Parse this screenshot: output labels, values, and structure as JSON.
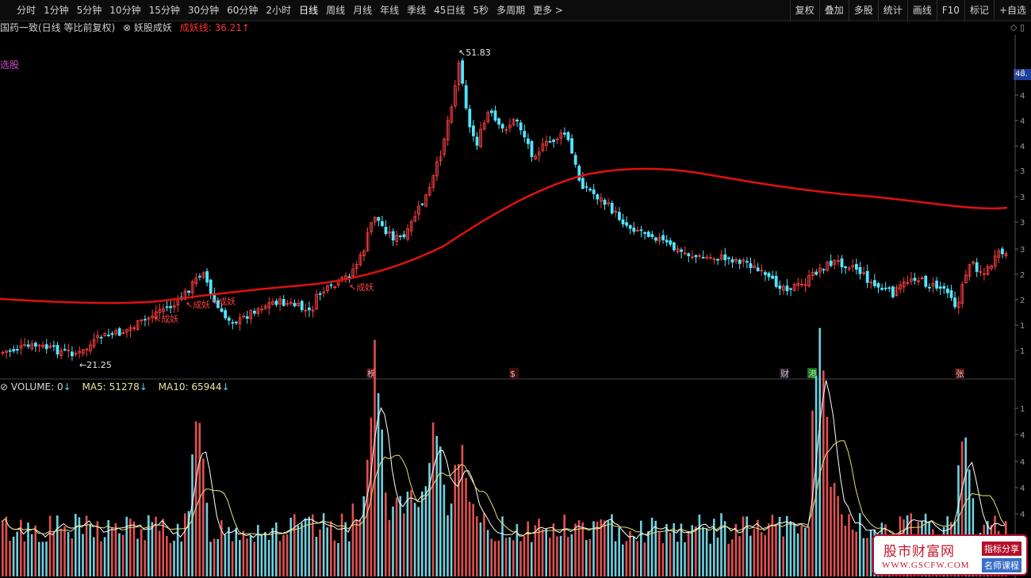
{
  "toolbar": {
    "periods": [
      "分时",
      "1分钟",
      "5分钟",
      "10分钟",
      "15分钟",
      "30分钟",
      "60分钟",
      "2小时",
      "日线",
      "周线",
      "月线",
      "年线",
      "季线",
      "45日线",
      "5秒",
      "多周期",
      "更多 >"
    ],
    "active_period": "日线",
    "right_buttons": [
      "复权",
      "叠加",
      "多股",
      "统计",
      "画线",
      "F10",
      "标记",
      "+自选"
    ]
  },
  "info": {
    "title": "国药一致(日线 等比前复权)",
    "indicator": "⊗ 妖股成妖",
    "line_value": "成妖线: 36.21↑"
  },
  "side_label": "选股",
  "price_tag": "48.",
  "right_icons": "◇ ▯",
  "chart_labels": {
    "high": "51.83",
    "low": "21.25",
    "signal": "成妖",
    "events": [
      "榜",
      "$",
      "财",
      "港",
      "张"
    ]
  },
  "volume": {
    "label": "VOLUME: 0",
    "ma5": "MA5: 51278",
    "ma10": "MA10: 65944",
    "arrow": "↓"
  },
  "right_axis_ticks": [
    "4",
    "4",
    "4",
    "4",
    "3",
    "3",
    "3",
    "3",
    "2",
    "2",
    "1",
    "1",
    "1"
  ],
  "colors": {
    "up": "#ff4040",
    "down": "#54e4ff",
    "ma_line": "#e01010",
    "vol_ma5": "#ffffff",
    "vol_ma10": "#e8e07a"
  },
  "watermark": {
    "title": "股市财富网",
    "url": "WWW.GSCFW.COM",
    "tag1": "指标分享",
    "tag2": "名师课程"
  }
}
